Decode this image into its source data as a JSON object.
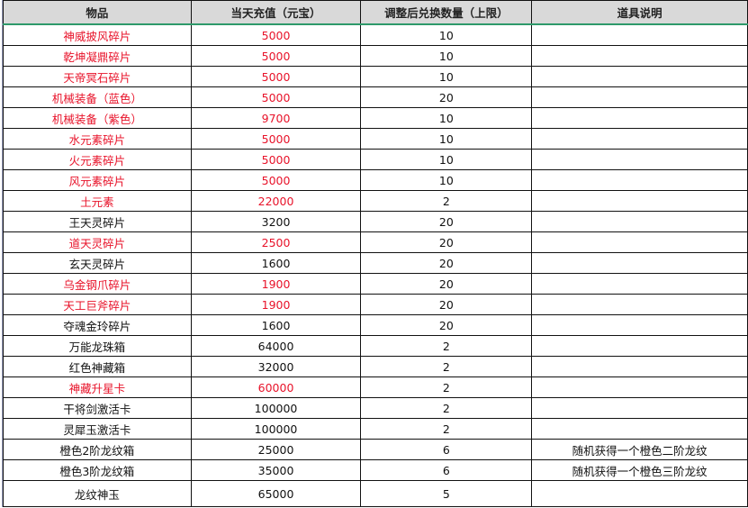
{
  "colors": {
    "highlight": "#e8132a",
    "header_bg": "#d9d9d9",
    "freeze_line": "#2e9a6b"
  },
  "headers": [
    "物品",
    "当天充值（元宝）",
    "调整后兑换数量（上限）",
    "道具说明"
  ],
  "rows": [
    {
      "item": "神威披风碎片",
      "recharge": "5000",
      "limit": "10",
      "desc": "",
      "red": true
    },
    {
      "item": "乾坤凝鼎碎片",
      "recharge": "5000",
      "limit": "10",
      "desc": "",
      "red": true
    },
    {
      "item": "天帝冥石碎片",
      "recharge": "5000",
      "limit": "10",
      "desc": "",
      "red": true
    },
    {
      "item": "机械装备（蓝色）",
      "recharge": "5000",
      "limit": "20",
      "desc": "",
      "red": true
    },
    {
      "item": "机械装备（紫色）",
      "recharge": "9700",
      "limit": "10",
      "desc": "",
      "red": true
    },
    {
      "item": "水元素碎片",
      "recharge": "5000",
      "limit": "10",
      "desc": "",
      "red": true
    },
    {
      "item": "火元素碎片",
      "recharge": "5000",
      "limit": "10",
      "desc": "",
      "red": true
    },
    {
      "item": "风元素碎片",
      "recharge": "5000",
      "limit": "10",
      "desc": "",
      "red": true
    },
    {
      "item": "土元素",
      "recharge": "22000",
      "limit": "2",
      "desc": "",
      "red": true
    },
    {
      "item": "王天灵碎片",
      "recharge": "3200",
      "limit": "20",
      "desc": "",
      "red": false
    },
    {
      "item": "道天灵碎片",
      "recharge": "2500",
      "limit": "20",
      "desc": "",
      "red": true
    },
    {
      "item": "玄天灵碎片",
      "recharge": "1600",
      "limit": "20",
      "desc": "",
      "red": false
    },
    {
      "item": "乌金钢爪碎片",
      "recharge": "1900",
      "limit": "20",
      "desc": "",
      "red": true
    },
    {
      "item": "天工巨斧碎片",
      "recharge": "1900",
      "limit": "20",
      "desc": "",
      "red": true
    },
    {
      "item": "夺魂金玲碎片",
      "recharge": "1600",
      "limit": "20",
      "desc": "",
      "red": false
    },
    {
      "item": "万能龙珠箱",
      "recharge": "64000",
      "limit": "2",
      "desc": "",
      "red": false
    },
    {
      "item": "红色神藏箱",
      "recharge": "32000",
      "limit": "2",
      "desc": "",
      "red": false
    },
    {
      "item": "神藏升星卡",
      "recharge": "60000",
      "limit": "2",
      "desc": "",
      "red": true
    },
    {
      "item": "干将剑激活卡",
      "recharge": "100000",
      "limit": "2",
      "desc": "",
      "red": false
    },
    {
      "item": "灵犀玉激活卡",
      "recharge": "100000",
      "limit": "2",
      "desc": "",
      "red": false
    },
    {
      "item": "橙色2阶龙纹箱",
      "recharge": "25000",
      "limit": "6",
      "desc": "随机获得一个橙色二阶龙纹",
      "red": false
    },
    {
      "item": "橙色3阶龙纹箱",
      "recharge": "35000",
      "limit": "6",
      "desc": "随机获得一个橙色三阶龙纹",
      "red": false
    },
    {
      "item": "龙纹神玉",
      "recharge": "65000",
      "limit": "5",
      "desc": "",
      "red": false
    }
  ]
}
